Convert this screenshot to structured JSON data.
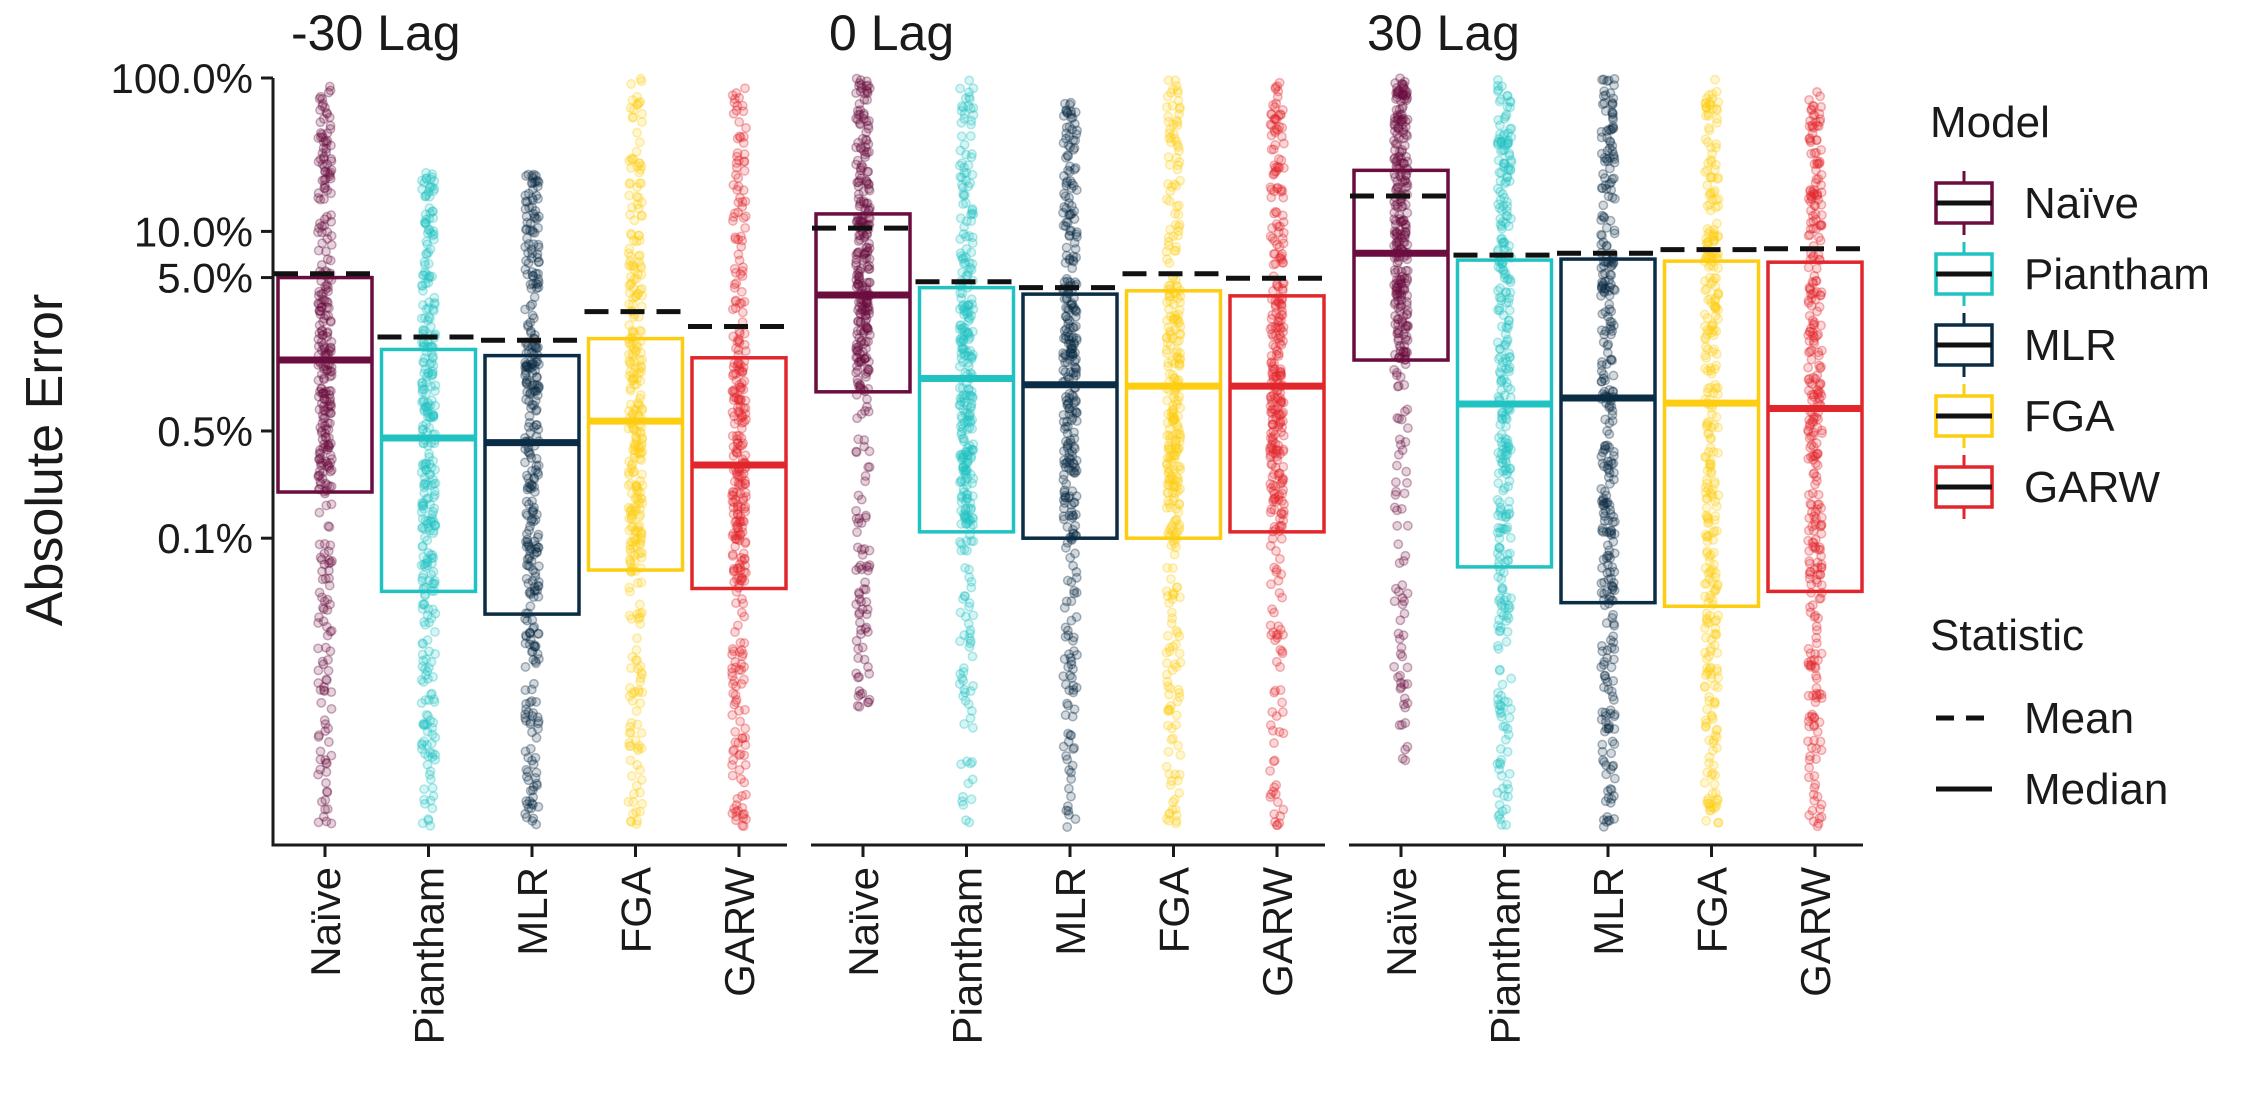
{
  "chart_data": {
    "type": "box",
    "ylabel": "Absolute Error",
    "xlabel": "",
    "y_scale": "log",
    "ylim": [
      "0.001%",
      "100.0%"
    ],
    "y_ticks": [
      {
        "value": 0.1,
        "label": "0.1%"
      },
      {
        "value": 0.5,
        "label": "0.5%"
      },
      {
        "value": 5.0,
        "label": "5.0%"
      },
      {
        "value": 10.0,
        "label": "10.0%"
      },
      {
        "value": 100.0,
        "label": "100.0%"
      }
    ],
    "categories": [
      "Naïve",
      "Piantham",
      "MLR",
      "FGA",
      "GARW"
    ],
    "panels": [
      {
        "title": "-30 Lag",
        "series": [
          {
            "name": "Naïve",
            "q1": 0.2,
            "median": 1.45,
            "q3": 5.0,
            "mean": 5.3,
            "min": 0.0013,
            "max": 100
          },
          {
            "name": "Piantham",
            "q1": 0.045,
            "median": 0.45,
            "q3": 1.7,
            "mean": 2.05,
            "min": 0.0013,
            "max": 25
          },
          {
            "name": "MLR",
            "q1": 0.032,
            "median": 0.42,
            "q3": 1.55,
            "mean": 1.95,
            "min": 0.0013,
            "max": 24
          },
          {
            "name": "FGA",
            "q1": 0.062,
            "median": 0.58,
            "q3": 2.0,
            "mean": 3.0,
            "min": 0.0013,
            "max": 100
          },
          {
            "name": "GARW",
            "q1": 0.047,
            "median": 0.3,
            "q3": 1.5,
            "mean": 2.4,
            "min": 0.0013,
            "max": 100
          }
        ]
      },
      {
        "title": "0 Lag",
        "series": [
          {
            "name": "Naïve",
            "q1": 0.9,
            "median": 3.85,
            "q3": 13.0,
            "mean": 10.5,
            "min": 0.0075,
            "max": 100
          },
          {
            "name": "Piantham",
            "q1": 0.11,
            "median": 1.1,
            "q3": 4.3,
            "mean": 4.7,
            "min": 0.0013,
            "max": 100
          },
          {
            "name": "MLR",
            "q1": 0.1,
            "median": 1.0,
            "q3": 3.9,
            "mean": 4.3,
            "min": 0.0013,
            "max": 70
          },
          {
            "name": "FGA",
            "q1": 0.1,
            "median": 0.98,
            "q3": 4.1,
            "mean": 5.3,
            "min": 0.0013,
            "max": 100
          },
          {
            "name": "GARW",
            "q1": 0.11,
            "median": 0.98,
            "q3": 3.8,
            "mean": 4.95,
            "min": 0.0013,
            "max": 100
          }
        ]
      },
      {
        "title": "30 Lag",
        "series": [
          {
            "name": "Naïve",
            "q1": 1.45,
            "median": 7.2,
            "q3": 25.0,
            "mean": 17.0,
            "min": 0.0035,
            "max": 100
          },
          {
            "name": "Piantham",
            "q1": 0.065,
            "median": 0.75,
            "q3": 6.5,
            "mean": 7.0,
            "min": 0.0013,
            "max": 100
          },
          {
            "name": "MLR",
            "q1": 0.038,
            "median": 0.82,
            "q3": 6.6,
            "mean": 7.2,
            "min": 0.0013,
            "max": 100
          },
          {
            "name": "FGA",
            "q1": 0.036,
            "median": 0.76,
            "q3": 6.4,
            "mean": 7.6,
            "min": 0.0013,
            "max": 100
          },
          {
            "name": "GARW",
            "q1": 0.045,
            "median": 0.7,
            "q3": 6.3,
            "mean": 7.7,
            "min": 0.0013,
            "max": 100
          }
        ]
      }
    ],
    "legend": {
      "placement": "right",
      "model_title": "Model",
      "models": [
        {
          "name": "Naïve",
          "color": "#6b0d3e"
        },
        {
          "name": "Piantham",
          "color": "#21c3c2"
        },
        {
          "name": "MLR",
          "color": "#0b2c45"
        },
        {
          "name": "FGA",
          "color": "#fdcd11"
        },
        {
          "name": "GARW",
          "color": "#e1262c"
        }
      ],
      "statistic_title": "Statistic",
      "statistics": [
        {
          "name": "Mean",
          "linetype": "dashed"
        },
        {
          "name": "Median",
          "linetype": "solid"
        }
      ]
    },
    "grid": false,
    "jitter_points": true
  }
}
